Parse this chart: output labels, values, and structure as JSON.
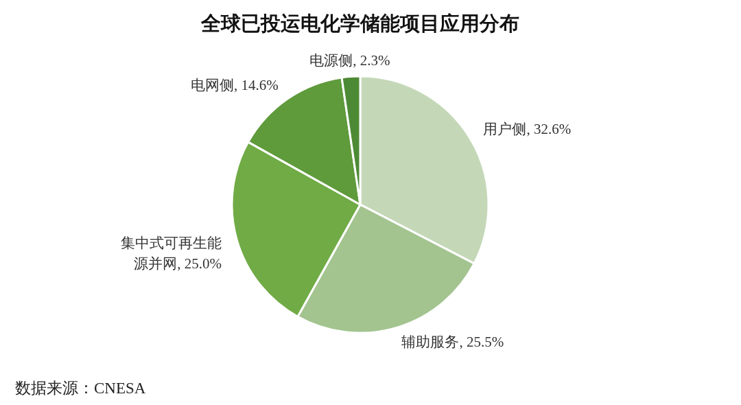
{
  "chart_data": {
    "type": "pie",
    "title": "全球已投运电化学储能项目应用分布",
    "categories": [
      "用户侧",
      "辅助服务",
      "集中式可再生能源并网",
      "电网侧",
      "电源侧"
    ],
    "values": [
      32.6,
      25.5,
      25.0,
      14.6,
      2.3
    ],
    "value_labels": [
      "32.6%",
      "25.5%",
      "25.0%",
      "14.6%",
      "2.3%"
    ],
    "colors": [
      "#c4d8b8",
      "#a3c48f",
      "#70ab46",
      "#5f9a3b",
      "#4d8a35"
    ],
    "annotations": [
      "数据来源：CNESA"
    ]
  }
}
